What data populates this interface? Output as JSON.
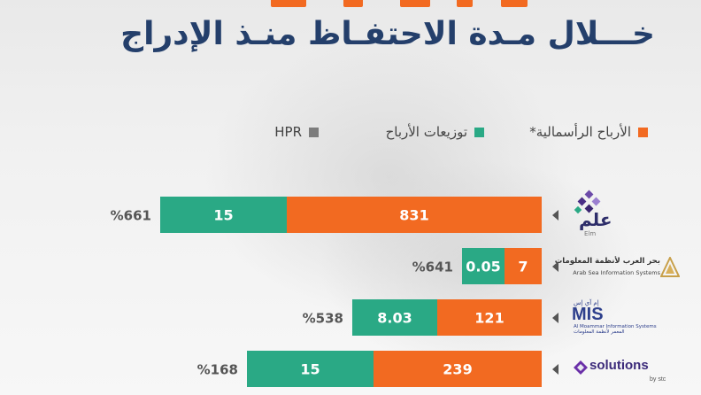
{
  "title": "خـــلال مـدة الاحتفـاظ منـذ الإدراج",
  "legend": {
    "capital": "الأرباح الرأسمالية*",
    "dividends": "توزيعات الأرباح",
    "hpr": "HPR"
  },
  "colors": {
    "capital": "#f26a21",
    "dividends": "#2aa985",
    "hpr": "#7d7d7d",
    "title": "#243f6b"
  },
  "companies": [
    {
      "name": "علم",
      "sub": "Elm"
    },
    {
      "name": "بحر العرب لأنظمة المعلومات",
      "sub": "Arab Sea Information Systems"
    },
    {
      "name": "MIS",
      "sub": "Al Moammar Information Systems",
      "sub2": "المعمر لأنظمة المعلومات",
      "tag": "إم آي إس"
    },
    {
      "name": "solutions",
      "sub": "by stc"
    }
  ],
  "chart_data": {
    "type": "bar",
    "orientation": "horizontal",
    "stacked": true,
    "categories": [
      "Elm",
      "Arab Sea Information Systems",
      "Al Moammar Information Systems",
      "solutions by stc"
    ],
    "series": [
      {
        "name": "الأرباح الرأسمالية*",
        "values": [
          831,
          7,
          121,
          239
        ],
        "labels": [
          "831",
          "7",
          "121",
          "239"
        ]
      },
      {
        "name": "توزيعات الأرباح",
        "values": [
          15,
          0.05,
          8.03,
          15
        ],
        "labels": [
          "15",
          "0.05",
          "8.03",
          "15"
        ]
      }
    ],
    "hpr": [
      "%661",
      "%641",
      "%538",
      "%168"
    ]
  }
}
